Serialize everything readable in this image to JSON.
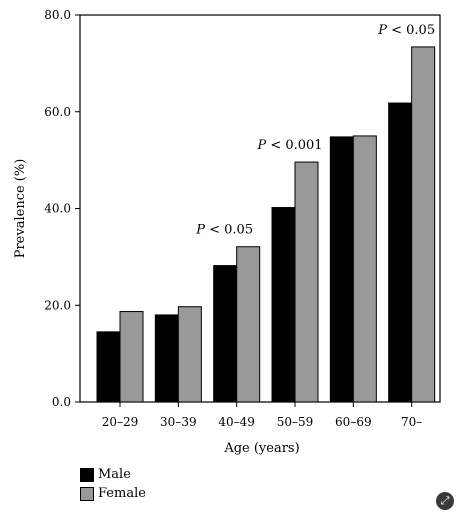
{
  "chart_data": {
    "type": "bar",
    "categories": [
      "20–29",
      "30–39",
      "40–49",
      "50–59",
      "60–69",
      "70–"
    ],
    "series": [
      {
        "name": "Male",
        "values": [
          14.5,
          18.0,
          28.2,
          40.2,
          54.8,
          61.8
        ],
        "color": "#000000"
      },
      {
        "name": "Female",
        "values": [
          18.7,
          19.7,
          32.1,
          49.6,
          55.0,
          73.4
        ],
        "color": "#999999"
      }
    ],
    "xlabel": "Age (years)",
    "ylabel": "Prevalence (%)",
    "ylim": [
      0,
      80
    ],
    "yticks": [
      "0.0",
      "20.0",
      "40.0",
      "60.0",
      "80.0"
    ],
    "annotations": [
      {
        "category": "40–49",
        "prefix": "P",
        "text": " < 0.05"
      },
      {
        "category": "50–59",
        "prefix": "P",
        "text": " < 0.001"
      },
      {
        "category": "70–",
        "prefix": "P",
        "text": " < 0.05"
      }
    ],
    "grid": false,
    "legend_position": "bottom-left"
  },
  "legend": {
    "male_label": "Male",
    "female_label": "Female"
  },
  "icons": {
    "corner": "share-icon"
  }
}
